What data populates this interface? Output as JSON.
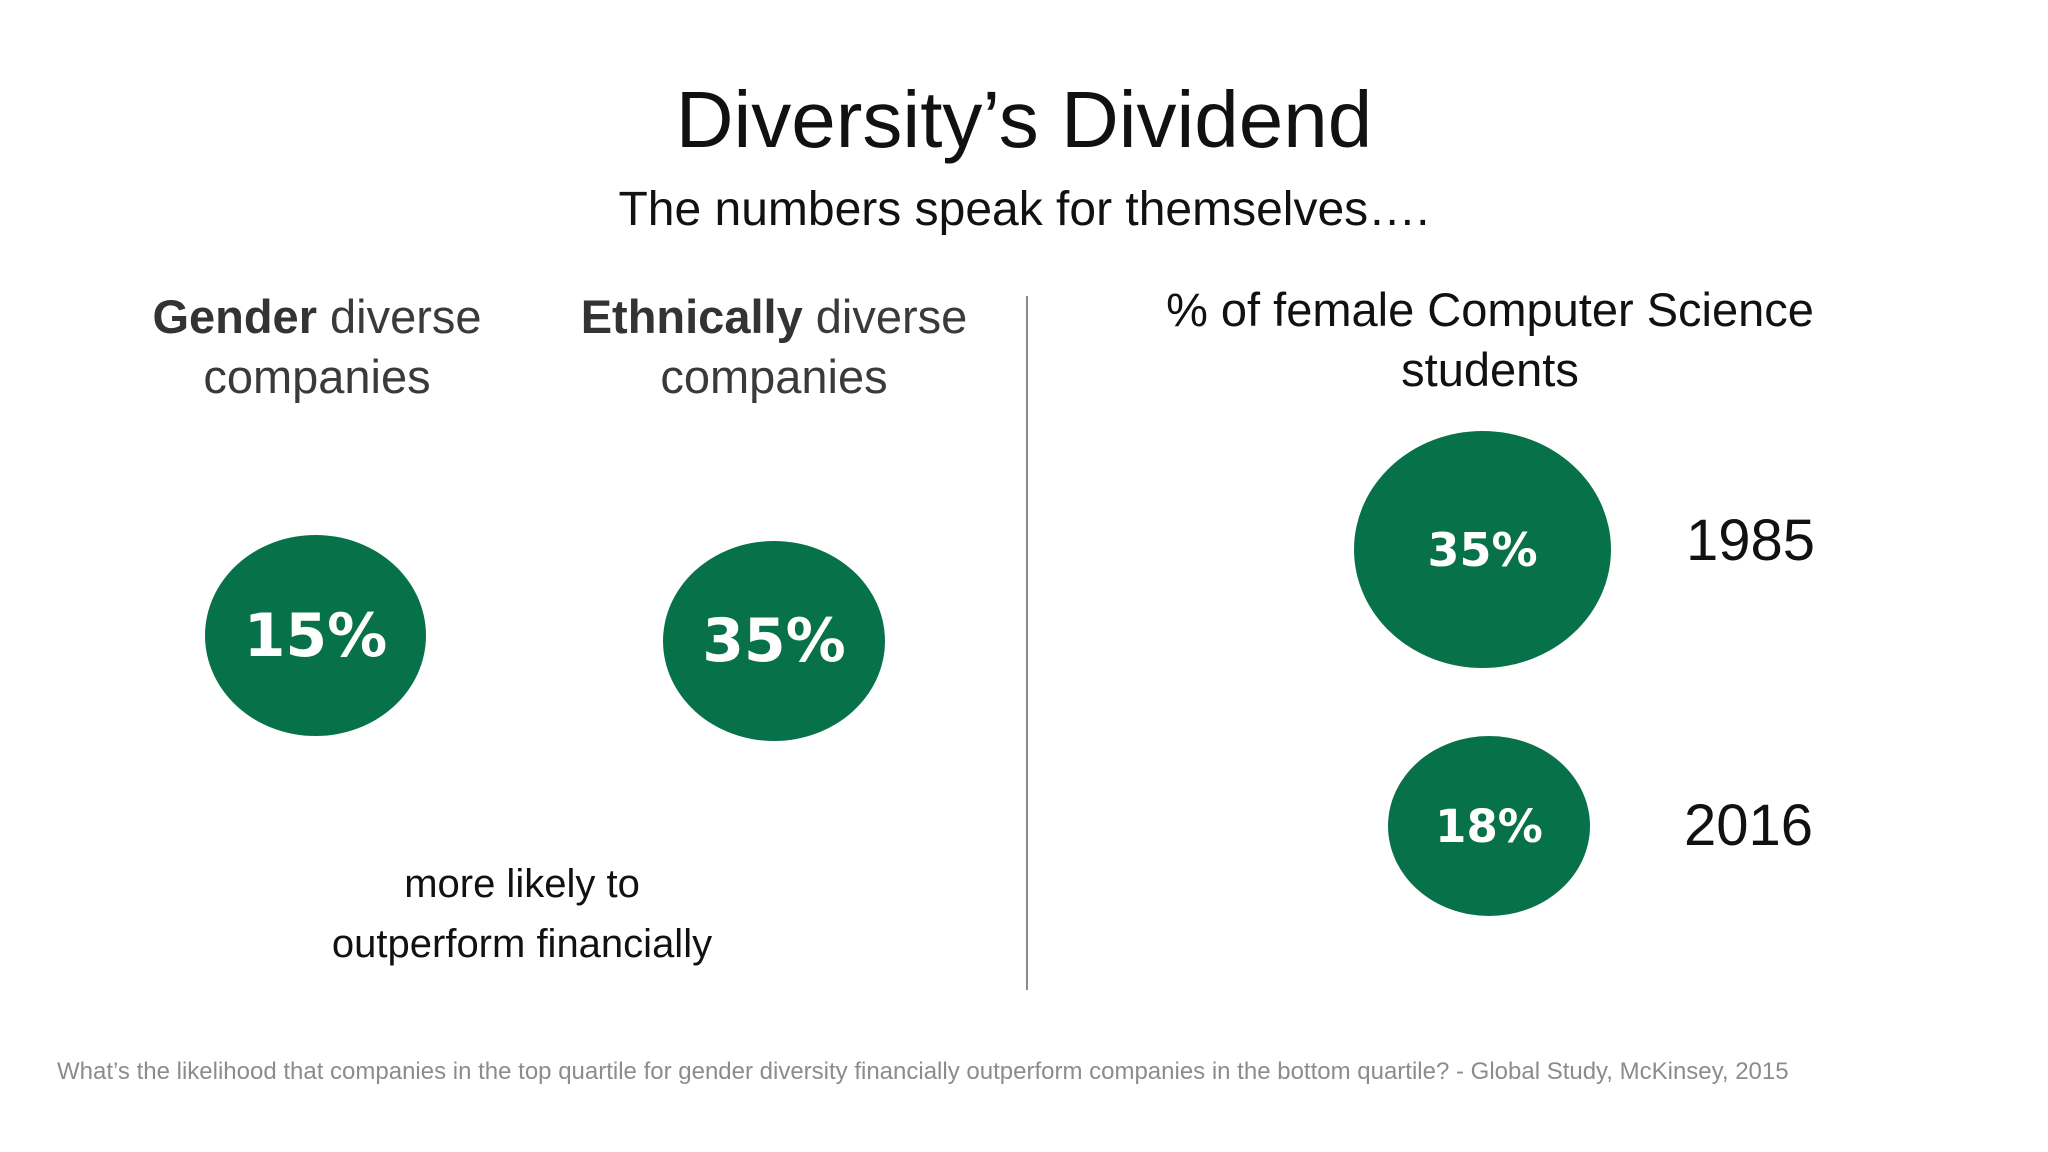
{
  "slide": {
    "title": "Diversity’s Dividend",
    "subtitle": "The numbers speak for themselves….",
    "left": {
      "gender_heading_bold": "Gender",
      "gender_heading_rest": " diverse",
      "gender_heading_line2": "companies",
      "ethnic_heading_bold": "Ethnically",
      "ethnic_heading_rest": " diverse",
      "ethnic_heading_line2": "companies",
      "gender_value": "15%",
      "ethnic_value": "35%",
      "caption_line1": "more likely to",
      "caption_line2": "outperform financially"
    },
    "right": {
      "heading_line1": "% of female Computer Science",
      "heading_line2": "students",
      "items": [
        {
          "value": "35%",
          "year": "1985"
        },
        {
          "value": "18%",
          "year": "2016"
        }
      ]
    },
    "footnote": "What’s the likelihood that companies in the top quartile for gender diversity financially outperform companies in the bottom quartile?   - Global Study, McKinsey, 2015"
  },
  "colors": {
    "accent_green": "#07724a",
    "divider": "#8a8a8a",
    "footnote_gray": "#8c8c8c"
  }
}
